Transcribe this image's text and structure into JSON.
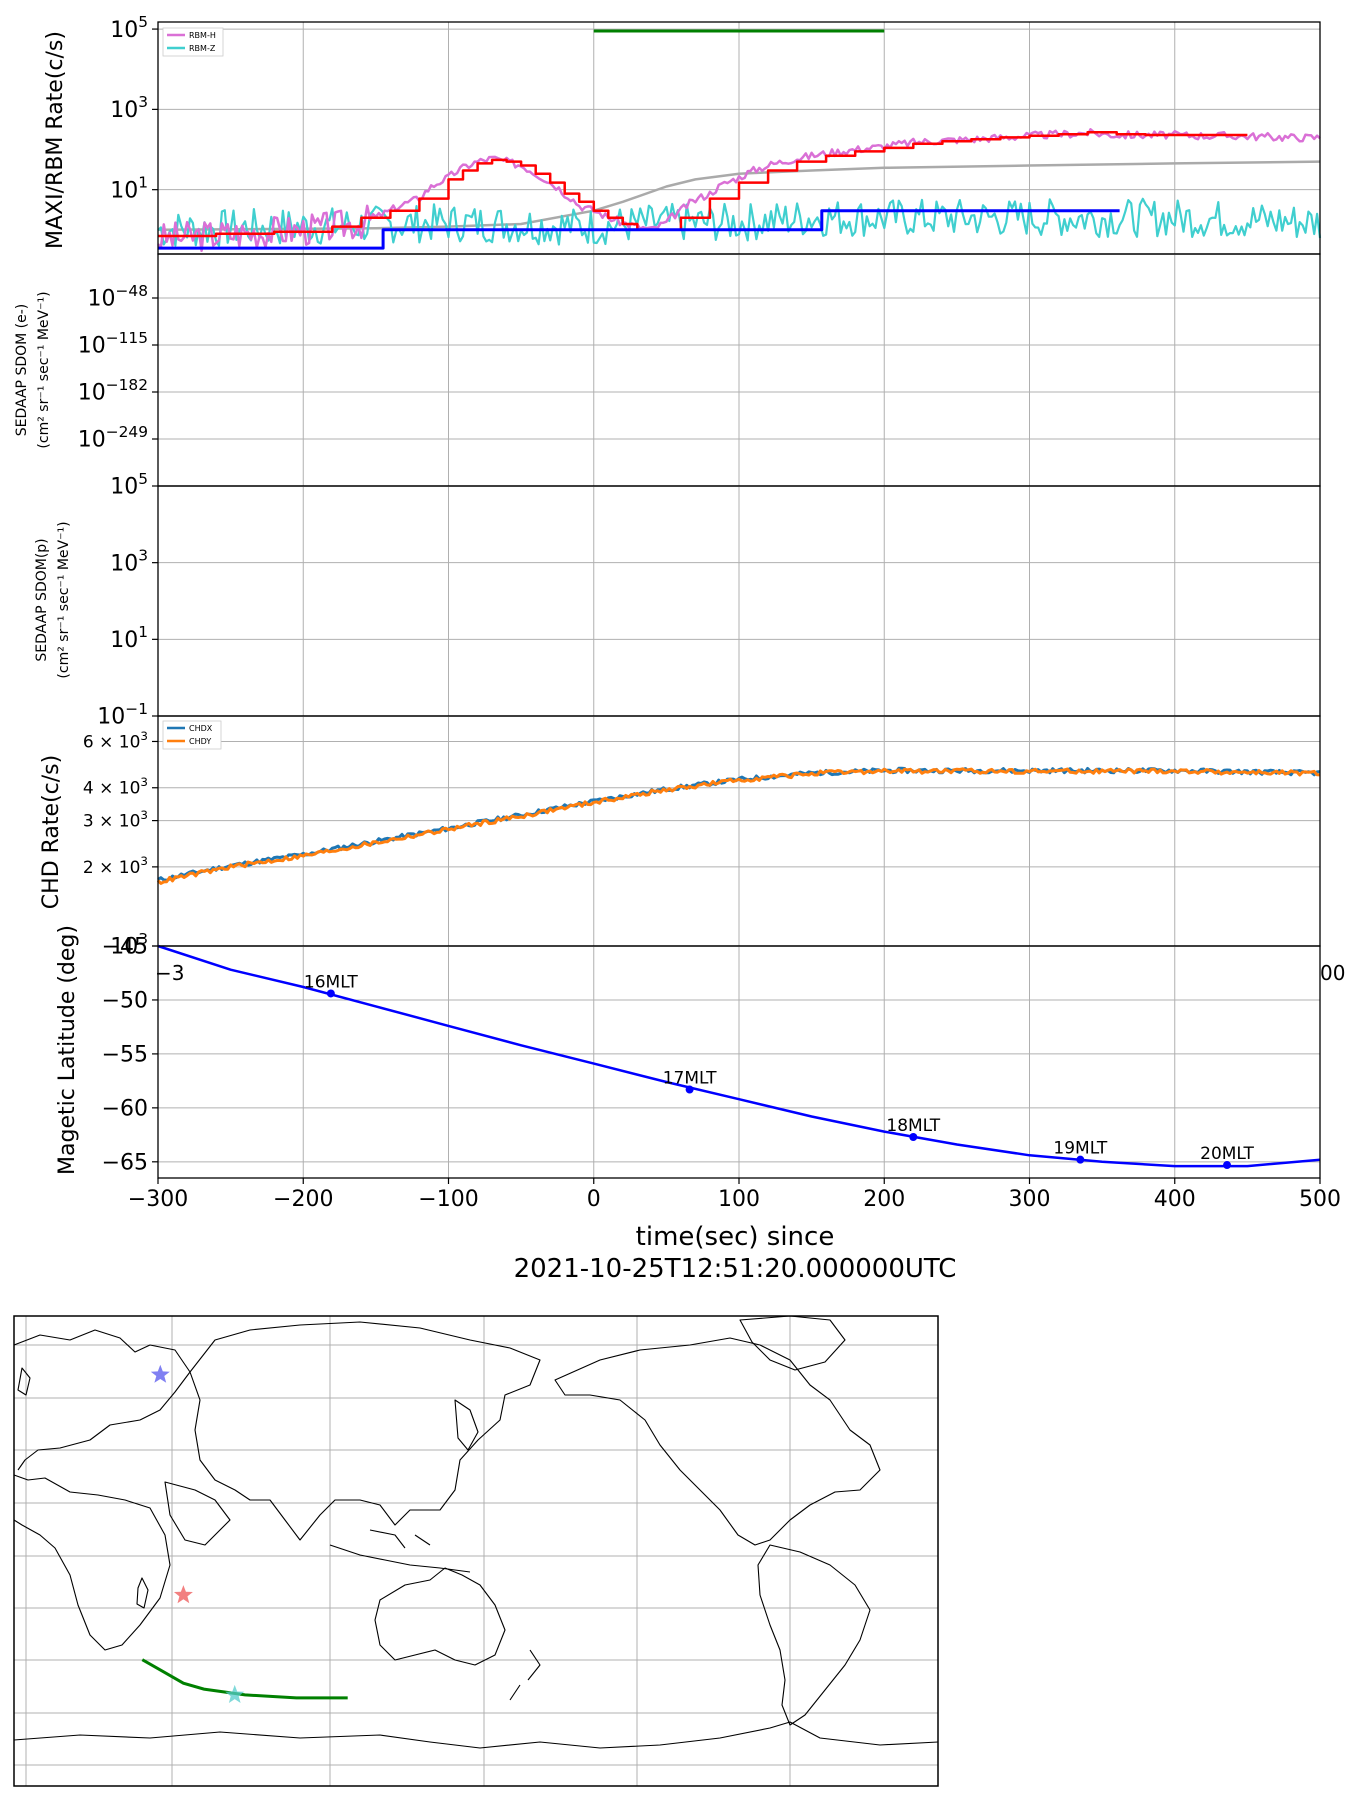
{
  "figure": {
    "xlabel_line1": "time(sec) since",
    "xlabel_line2": "2021-10-25T12:51:20.000000UTC",
    "x_ticks": [
      -300,
      -200,
      -100,
      0,
      100,
      200,
      300,
      400,
      500
    ],
    "x_tick_labels": [
      "−300",
      "−200",
      "−100",
      "0",
      "100",
      "200",
      "300",
      "400",
      "500"
    ],
    "xlim": [
      -300,
      500
    ]
  },
  "chart_data": [
    {
      "type": "line",
      "ylabel": "MAXI/RBM Rate(c/s)",
      "yscale": "log",
      "ylim": [
        0.25,
        150000
      ],
      "y_tick_labels": [
        {
          "v": 10,
          "label": "10"
        },
        {
          "v": 1000,
          "label": "10"
        },
        {
          "v": 100000,
          "label": "10"
        }
      ],
      "y_tick_exp": [
        "1",
        "3",
        "5"
      ],
      "grid": true,
      "legend_position": "top-left",
      "series": [
        {
          "name": "RBM-H",
          "color": "#da70d6",
          "x": [
            -300,
            -250,
            -200,
            -180,
            -160,
            -150,
            -140,
            -120,
            -100,
            -90,
            -80,
            -70,
            -60,
            -50,
            -40,
            -30,
            -20,
            -10,
            0,
            10,
            20,
            30,
            40,
            50,
            60,
            80,
            100,
            120,
            140,
            160,
            180,
            200,
            220,
            240,
            260,
            280,
            300,
            320,
            340,
            360,
            380,
            400,
            420,
            440,
            460,
            480,
            500
          ],
          "y": [
            0.6,
            0.8,
            1,
            1.2,
            1.5,
            2,
            3,
            6,
            20,
            35,
            50,
            60,
            50,
            40,
            25,
            15,
            8,
            4,
            3,
            2,
            1.5,
            1.2,
            1,
            1.5,
            3,
            8,
            20,
            40,
            60,
            80,
            100,
            120,
            150,
            170,
            180,
            200,
            220,
            240,
            260,
            230,
            230,
            230,
            220,
            220,
            210,
            200,
            200
          ]
        },
        {
          "name": "RBM-Z",
          "color": "#40cfcf",
          "x": [
            -300,
            -200,
            -100,
            0,
            50,
            100,
            150,
            200,
            300,
            400,
            500
          ],
          "y": [
            1,
            1.2,
            1.5,
            1.2,
            1.5,
            1.5,
            2,
            2,
            2,
            2,
            1.5
          ]
        },
        {
          "name": "",
          "color": "#ff0000",
          "x": [
            -300,
            -260,
            -220,
            -180,
            -160,
            -140,
            -120,
            -100,
            -90,
            -80,
            -70,
            -60,
            -50,
            -40,
            -30,
            -20,
            -10,
            0,
            10,
            20,
            30,
            40,
            60,
            80,
            100,
            120,
            140,
            160,
            180,
            200,
            220,
            240,
            260,
            280,
            300,
            320,
            340,
            360,
            380,
            400,
            420,
            440,
            450
          ],
          "y": [
            0.7,
            0.8,
            0.9,
            1.2,
            2,
            3,
            6,
            18,
            30,
            45,
            55,
            50,
            40,
            25,
            15,
            8,
            5,
            3,
            2,
            1.4,
            1,
            1,
            2,
            6,
            15,
            30,
            50,
            70,
            90,
            110,
            140,
            160,
            180,
            200,
            220,
            240,
            270,
            240,
            230,
            230,
            230,
            230,
            230
          ]
        },
        {
          "name": "",
          "color": "#0000ff",
          "x": [
            -300,
            -145,
            -145,
            157,
            157,
            362
          ],
          "y": [
            0.35,
            0.35,
            1.0,
            1.0,
            3.0,
            3.0
          ]
        },
        {
          "name": "",
          "color": "#aaaaaa",
          "x": [
            -300,
            -150,
            -100,
            -50,
            0,
            20,
            50,
            70,
            100,
            150,
            200,
            300,
            400,
            500
          ],
          "y": [
            1,
            1.1,
            1.2,
            1.4,
            3,
            5,
            12,
            18,
            25,
            30,
            35,
            40,
            45,
            50
          ]
        }
      ],
      "annotation_bar": {
        "x_start": 0,
        "x_end": 200,
        "color": "#008000"
      }
    },
    {
      "type": "line",
      "ylabel_line1": "SEDAAP SDOM (e-)",
      "ylabel_line2": "(cm² sr⁻¹ sec⁻¹ MeV⁻¹)",
      "yscale": "log",
      "y_tick_labels": [
        {
          "label": "10",
          "exp": "−48"
        },
        {
          "label": "10",
          "exp": "−115"
        },
        {
          "label": "10",
          "exp": "−182"
        },
        {
          "label": "10",
          "exp": "−249"
        }
      ],
      "grid": true,
      "series": []
    },
    {
      "type": "line",
      "ylabel_line1": "SEDAAP SDOM(p)",
      "ylabel_line2": "(cm² sr⁻¹ sec⁻¹ MeV⁻¹)",
      "yscale": "log",
      "ylim": [
        0.1,
        100000
      ],
      "y_tick_labels": [
        {
          "label": "10",
          "exp": "5"
        },
        {
          "label": "10",
          "exp": "3"
        },
        {
          "label": "10",
          "exp": "1"
        },
        {
          "label": "10",
          "exp": "−1"
        }
      ],
      "grid": true,
      "series": []
    },
    {
      "type": "line",
      "ylabel": "CHD Rate(c/s)",
      "yscale": "log",
      "ylim": [
        1000,
        7500
      ],
      "y_tick_labels": [
        {
          "label": "6 × 10",
          "exp": "3"
        },
        {
          "label": "4 × 10",
          "exp": "3"
        },
        {
          "label": "3 × 10",
          "exp": "3"
        },
        {
          "label": "2 × 10",
          "exp": "3"
        },
        {
          "label": "10",
          "exp": "3"
        }
      ],
      "y_tick_values": [
        6000,
        4000,
        3000,
        2000,
        1000
      ],
      "grid": true,
      "legend_position": "top-left",
      "x_tick_partial": [
        "−3",
        "00"
      ],
      "series": [
        {
          "name": "CHDX",
          "color": "#1f77b4",
          "x": [
            -300,
            -250,
            -200,
            -150,
            -100,
            -50,
            0,
            50,
            100,
            150,
            200,
            250,
            300,
            350,
            400,
            450,
            500
          ],
          "y": [
            1780,
            2020,
            2230,
            2500,
            2800,
            3150,
            3550,
            3950,
            4300,
            4550,
            4650,
            4650,
            4650,
            4650,
            4650,
            4600,
            4550
          ]
        },
        {
          "name": "CHDY",
          "color": "#ff7f0e",
          "x": [
            -300,
            -250,
            -200,
            -150,
            -100,
            -50,
            0,
            50,
            100,
            150,
            200,
            250,
            300,
            350,
            400,
            450,
            500
          ],
          "y": [
            1750,
            2000,
            2200,
            2470,
            2780,
            3120,
            3520,
            3920,
            4280,
            4530,
            4630,
            4630,
            4630,
            4630,
            4630,
            4580,
            4530
          ]
        }
      ]
    },
    {
      "type": "line",
      "ylabel": "Magetic Latitude  (deg)",
      "ylim": [
        -66.5,
        -45
      ],
      "y_ticks": [
        -45,
        -50,
        -55,
        -60,
        -65
      ],
      "y_tick_labels": [
        "−45",
        "−50",
        "−55",
        "−60",
        "−65"
      ],
      "grid": true,
      "series": [
        {
          "name": "",
          "color": "#0000ff",
          "x": [
            -300,
            -250,
            -200,
            -150,
            -100,
            -50,
            0,
            50,
            100,
            150,
            200,
            250,
            300,
            350,
            400,
            450,
            500
          ],
          "y": [
            -45.0,
            -47.2,
            -48.8,
            -50.6,
            -52.4,
            -54.2,
            -55.9,
            -57.6,
            -59.2,
            -60.8,
            -62.2,
            -63.4,
            -64.4,
            -65.0,
            -65.4,
            -65.4,
            -64.8
          ]
        }
      ],
      "markers": [
        {
          "x": -181,
          "y": -49.4,
          "label": "16MLT"
        },
        {
          "x": 66,
          "y": -58.3,
          "label": "17MLT"
        },
        {
          "x": 220,
          "y": -62.7,
          "label": "18MLT"
        },
        {
          "x": 335,
          "y": -64.8,
          "label": "19MLT"
        },
        {
          "x": 436,
          "y": -65.3,
          "label": "20MLT"
        }
      ]
    }
  ],
  "map": {
    "stars": [
      {
        "lon": 37,
        "lat": 55,
        "color": "#5555ee"
      },
      {
        "lon": 46,
        "lat": -20,
        "color": "#ee5555"
      },
      {
        "lon": 66,
        "lat": -54,
        "color": "#55cccc"
      }
    ],
    "track": {
      "color": "#008000",
      "lon": [
        30,
        38,
        46,
        54,
        62,
        70,
        80,
        90,
        100,
        110
      ],
      "lat": [
        -42,
        -46,
        -50,
        -52,
        -53,
        -54,
        -54.5,
        -55,
        -55,
        -55
      ]
    }
  }
}
